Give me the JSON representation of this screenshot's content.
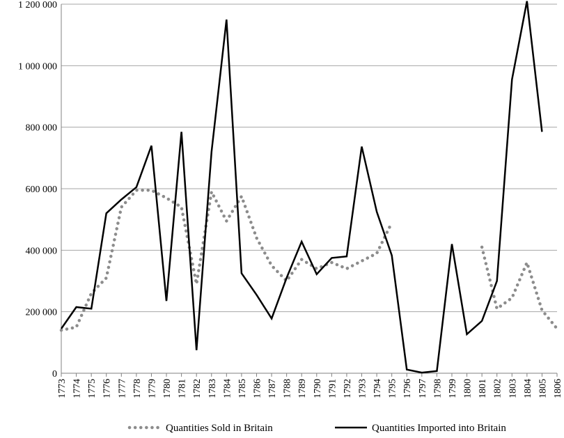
{
  "chart_data": {
    "type": "line",
    "title": "",
    "xlabel": "",
    "ylabel": "",
    "x": [
      "1773",
      "1774",
      "1775",
      "1776",
      "1777",
      "1778",
      "1779",
      "1780",
      "1781",
      "1782",
      "1783",
      "1784",
      "1785",
      "1786",
      "1787",
      "1788",
      "1789",
      "1790",
      "1791",
      "1792",
      "1793",
      "1794",
      "1795",
      "1796",
      "1797",
      "1798",
      "1799",
      "1800",
      "1801",
      "1802",
      "1803",
      "1804",
      "1805",
      "1806"
    ],
    "ylim": [
      0,
      1200000
    ],
    "yticks": [
      0,
      200000,
      400000,
      600000,
      800000,
      1000000,
      1200000
    ],
    "ytick_labels": [
      "0",
      "200 000",
      "400 000",
      "600 000",
      "800 000",
      "1 000 000",
      "1 200 000"
    ],
    "grid": "horizontal",
    "legend_position": "bottom",
    "series": [
      {
        "name": "Quantities Sold in Britain",
        "style": "dotted",
        "color": "#8c8c8c",
        "values": [
          140000,
          150000,
          260000,
          310000,
          540000,
          595000,
          595000,
          570000,
          540000,
          290000,
          590000,
          495000,
          575000,
          440000,
          350000,
          300000,
          370000,
          340000,
          360000,
          340000,
          365000,
          390000,
          490000,
          null,
          null,
          null,
          null,
          null,
          410000,
          210000,
          245000,
          360000,
          205000,
          145000
        ]
      },
      {
        "name": "Quantities Imported into Britain",
        "style": "solid",
        "color": "#000000",
        "values": [
          145000,
          215000,
          210000,
          520000,
          565000,
          605000,
          740000,
          235000,
          785000,
          75000,
          720000,
          1150000,
          325000,
          255000,
          178000,
          310000,
          428000,
          322000,
          375000,
          380000,
          737000,
          525000,
          383000,
          12000,
          2000,
          7000,
          420000,
          127000,
          170000,
          300000,
          955000,
          1210000,
          785000,
          null
        ]
      }
    ]
  }
}
